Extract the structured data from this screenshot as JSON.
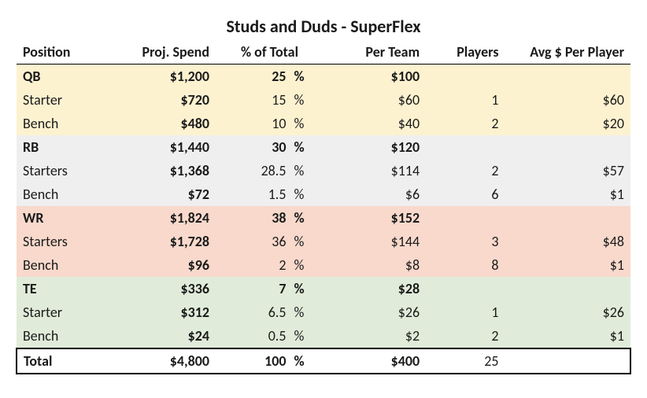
{
  "title": "Studs and Duds - SuperFlex",
  "headers": {
    "position": "Position",
    "proj_spend": "Proj. Spend",
    "pct_total": "% of Total",
    "per_team": "Per Team",
    "players": "Players",
    "avg_per_player": "Avg $ Per Player"
  },
  "colors": {
    "qb_bg": "#fdf2d0",
    "rb_bg": "#efefef",
    "wr_bg": "#f8d9cc",
    "te_bg": "#e0ecd9",
    "border": "#000000",
    "text": "#1a1a1a",
    "background": "#ffffff"
  },
  "typography": {
    "title_fontsize": 22,
    "body_fontsize": 18,
    "font_family": "Calibri"
  },
  "groups": [
    {
      "key": "qb",
      "bg_class": "qb-bg",
      "header": {
        "pos": "QB",
        "spend": "$1,200",
        "pct": "25",
        "per_team": "$100",
        "per_team_bold": true
      },
      "rows": [
        {
          "pos": "Starter",
          "spend": "$720",
          "pct": "15",
          "per_team": "$60",
          "players": "1",
          "avg": "$60"
        },
        {
          "pos": "Bench",
          "spend": "$480",
          "pct": "10",
          "per_team": "$40",
          "players": "2",
          "avg": "$20"
        }
      ]
    },
    {
      "key": "rb",
      "bg_class": "rb-bg",
      "header": {
        "pos": "RB",
        "spend": "$1,440",
        "pct": "30",
        "per_team": "$120",
        "per_team_bold": false
      },
      "rows": [
        {
          "pos": "Starters",
          "spend": "$1,368",
          "pct": "28.5",
          "per_team": "$114",
          "players": "2",
          "avg": "$57"
        },
        {
          "pos": "Bench",
          "spend": "$72",
          "pct": "1.5",
          "per_team": "$6",
          "players": "6",
          "avg": "$1"
        }
      ]
    },
    {
      "key": "wr",
      "bg_class": "wr-bg",
      "header": {
        "pos": "WR",
        "spend": "$1,824",
        "pct": "38",
        "per_team": "$152",
        "per_team_bold": false
      },
      "rows": [
        {
          "pos": "Starters",
          "spend": "$1,728",
          "pct": "36",
          "per_team": "$144",
          "players": "3",
          "avg": "$48"
        },
        {
          "pos": "Bench",
          "spend": "$96",
          "pct": "2",
          "per_team": "$8",
          "players": "8",
          "avg": "$1"
        }
      ]
    },
    {
      "key": "te",
      "bg_class": "te-bg",
      "header": {
        "pos": "TE",
        "spend": "$336",
        "pct": "7",
        "per_team": "$28",
        "per_team_bold": false
      },
      "rows": [
        {
          "pos": "Starter",
          "spend": "$312",
          "pct": "6.5",
          "per_team": "$26",
          "players": "1",
          "avg": "$26"
        },
        {
          "pos": "Bench",
          "spend": "$24",
          "pct": "0.5",
          "per_team": "$2",
          "players": "2",
          "avg": "$1"
        }
      ]
    }
  ],
  "total": {
    "pos": "Total",
    "spend": "$4,800",
    "pct": "100",
    "per_team": "$400",
    "players": "25"
  },
  "pct_symbol": "%"
}
